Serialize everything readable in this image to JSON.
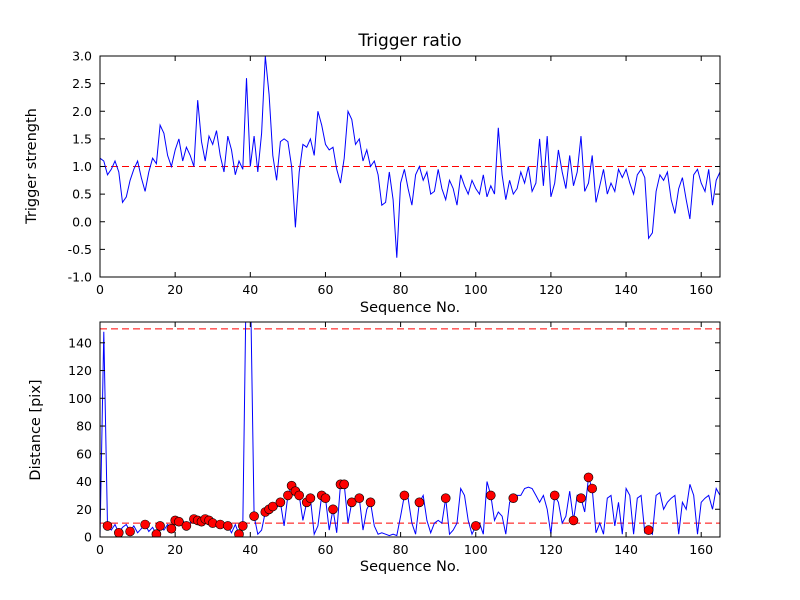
{
  "figure": {
    "background": "#ffffff"
  },
  "chart_data": [
    {
      "name": "trigger-ratio",
      "type": "line",
      "title": "Trigger ratio",
      "xlabel": "Sequence No.",
      "ylabel": "Trigger strength",
      "xlim": [
        0,
        165
      ],
      "ylim": [
        -1.0,
        3.0
      ],
      "xticks": [
        "0",
        "20",
        "40",
        "60",
        "80",
        "100",
        "120",
        "140",
        "160"
      ],
      "yticks": [
        "-1.0",
        "-0.5",
        "0.0",
        "0.5",
        "1.0",
        "1.5",
        "2.0",
        "2.5",
        "3.0"
      ],
      "grid": false,
      "legend": "none",
      "line_color": "#0000ff",
      "threshold_color": "#ff0000",
      "threshold_lines": [
        1.0
      ],
      "x_note": "x = sequence index 0..165 step 1",
      "y": [
        1.15,
        1.1,
        0.85,
        0.95,
        1.1,
        0.9,
        0.35,
        0.45,
        0.75,
        0.95,
        1.1,
        0.8,
        0.55,
        0.9,
        1.15,
        1.05,
        1.75,
        1.6,
        1.2,
        1.0,
        1.3,
        1.5,
        1.1,
        1.35,
        1.2,
        1.0,
        2.2,
        1.45,
        1.1,
        1.55,
        1.4,
        1.65,
        1.2,
        0.9,
        1.55,
        1.3,
        0.85,
        1.1,
        0.95,
        2.6,
        1.0,
        1.55,
        0.9,
        1.6,
        3.0,
        2.3,
        1.2,
        0.75,
        1.45,
        1.5,
        1.45,
        1.0,
        -0.1,
        0.9,
        1.4,
        1.35,
        1.5,
        1.2,
        2.0,
        1.75,
        1.4,
        1.3,
        1.35,
        0.95,
        0.7,
        1.15,
        2.0,
        1.85,
        1.4,
        1.5,
        1.1,
        1.3,
        1.0,
        1.1,
        0.85,
        0.3,
        0.35,
        0.9,
        0.4,
        -0.65,
        0.7,
        0.95,
        0.6,
        0.3,
        0.85,
        1.0,
        0.75,
        0.9,
        0.5,
        0.55,
        0.95,
        0.6,
        0.4,
        0.75,
        0.6,
        0.3,
        0.85,
        0.65,
        0.5,
        0.75,
        0.6,
        0.5,
        0.85,
        0.45,
        0.65,
        0.5,
        1.7,
        0.85,
        0.4,
        0.75,
        0.5,
        0.6,
        0.9,
        0.7,
        1.0,
        0.55,
        0.7,
        1.5,
        0.65,
        1.55,
        0.45,
        0.7,
        1.3,
        0.9,
        0.6,
        1.2,
        0.65,
        0.9,
        1.55,
        0.55,
        0.7,
        1.2,
        0.35,
        0.65,
        0.95,
        0.5,
        0.7,
        0.55,
        0.95,
        0.8,
        0.95,
        0.7,
        0.5,
        0.85,
        0.95,
        0.8,
        -0.3,
        -0.2,
        0.55,
        0.85,
        0.75,
        0.9,
        0.4,
        0.15,
        0.6,
        0.8,
        0.4,
        0.05,
        0.85,
        0.95,
        0.7,
        0.55,
        0.95,
        0.3,
        0.75,
        0.9
      ]
    },
    {
      "name": "distance",
      "type": "line+scatter",
      "title": "",
      "xlabel": "Sequence No.",
      "ylabel": "Distance [pix]",
      "xlim": [
        0,
        165
      ],
      "ylim": [
        0,
        155
      ],
      "xticks": [
        "0",
        "20",
        "40",
        "60",
        "80",
        "100",
        "120",
        "140",
        "160"
      ],
      "yticks": [
        "0",
        "20",
        "40",
        "60",
        "80",
        "100",
        "120",
        "140"
      ],
      "grid": false,
      "legend": "none",
      "line_color": "#0000ff",
      "scatter_color": "#ff0000",
      "threshold_color": "#ff0000",
      "threshold_lines": [
        150,
        10
      ],
      "x_note": "x = sequence index 0..165 step 1; values above ylim are clipped spikes",
      "y": [
        0,
        148,
        8,
        5,
        9,
        3,
        7,
        9,
        4,
        8,
        3,
        6,
        9,
        4,
        7,
        2,
        8,
        5,
        9,
        6,
        12,
        11,
        12,
        8,
        10,
        13,
        12,
        11,
        13,
        12,
        10,
        11,
        9,
        10,
        8,
        3,
        9,
        2,
        8,
        200,
        190,
        15,
        2,
        5,
        18,
        20,
        22,
        21,
        25,
        8,
        30,
        37,
        33,
        30,
        12,
        25,
        28,
        2,
        8,
        30,
        28,
        5,
        20,
        3,
        38,
        38,
        10,
        25,
        28,
        28,
        5,
        20,
        25,
        8,
        2,
        3,
        2,
        1,
        2,
        1,
        15,
        30,
        28,
        10,
        2,
        25,
        30,
        12,
        3,
        10,
        12,
        10,
        28,
        2,
        5,
        10,
        35,
        30,
        12,
        2,
        8,
        10,
        2,
        40,
        30,
        12,
        18,
        15,
        2,
        25,
        28,
        30,
        30,
        35,
        36,
        35,
        30,
        25,
        30,
        20,
        2,
        30,
        25,
        10,
        15,
        33,
        12,
        30,
        28,
        18,
        43,
        35,
        3,
        10,
        2,
        28,
        30,
        8,
        25,
        2,
        35,
        30,
        2,
        28,
        30,
        3,
        5,
        2,
        30,
        32,
        20,
        25,
        28,
        30,
        2,
        25,
        20,
        38,
        30,
        2,
        25,
        28,
        30,
        20,
        35,
        30
      ],
      "scatter": [
        [
          2,
          8
        ],
        [
          5,
          3
        ],
        [
          8,
          4
        ],
        [
          12,
          9
        ],
        [
          15,
          2
        ],
        [
          16,
          8
        ],
        [
          19,
          6
        ],
        [
          20,
          12
        ],
        [
          21,
          11
        ],
        [
          23,
          8
        ],
        [
          25,
          13
        ],
        [
          26,
          12
        ],
        [
          27,
          11
        ],
        [
          28,
          13
        ],
        [
          29,
          12
        ],
        [
          30,
          10
        ],
        [
          32,
          9
        ],
        [
          34,
          8
        ],
        [
          37,
          2
        ],
        [
          38,
          8
        ],
        [
          41,
          15
        ],
        [
          44,
          18
        ],
        [
          45,
          20
        ],
        [
          46,
          22
        ],
        [
          48,
          25
        ],
        [
          50,
          30
        ],
        [
          51,
          37
        ],
        [
          52,
          33
        ],
        [
          53,
          30
        ],
        [
          55,
          25
        ],
        [
          56,
          28
        ],
        [
          59,
          30
        ],
        [
          60,
          28
        ],
        [
          62,
          20
        ],
        [
          64,
          38
        ],
        [
          65,
          38
        ],
        [
          67,
          25
        ],
        [
          69,
          28
        ],
        [
          72,
          25
        ],
        [
          81,
          30
        ],
        [
          85,
          25
        ],
        [
          92,
          28
        ],
        [
          100,
          8
        ],
        [
          104,
          30
        ],
        [
          110,
          28
        ],
        [
          121,
          30
        ],
        [
          126,
          12
        ],
        [
          128,
          28
        ],
        [
          130,
          43
        ],
        [
          131,
          35
        ],
        [
          146,
          5
        ]
      ]
    }
  ]
}
